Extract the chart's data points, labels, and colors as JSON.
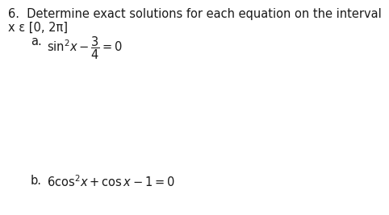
{
  "background_color": "#ffffff",
  "line1": "6.  Determine exact solutions for each equation on the interval",
  "line2": "x ε [0, 2π]",
  "part_a_label": "a.",
  "part_a_math": "$\\mathrm{sin}^2 x - \\dfrac{3}{4} = 0$",
  "part_b_label": "b.",
  "part_b_math": "$6\\mathrm{cos}^2 x + \\mathrm{cos}\\, x - 1 = 0$",
  "font_size_main": 10.5,
  "font_size_math": 10.5,
  "text_color": "#1a1a1a"
}
